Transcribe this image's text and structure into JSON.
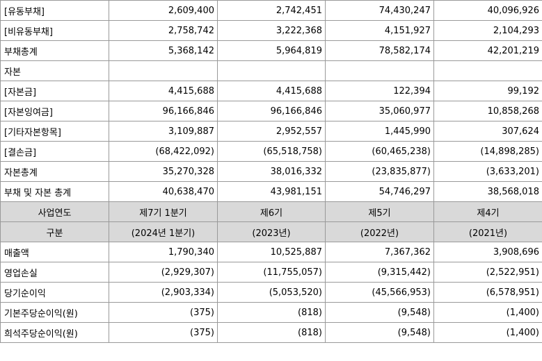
{
  "balance_rows": [
    {
      "label": "[유동부채]",
      "values": [
        "2,609,400",
        "2,742,451",
        "74,430,247",
        "40,096,926"
      ]
    },
    {
      "label": "[비유동부채]",
      "values": [
        "2,758,742",
        "3,222,368",
        "4,151,927",
        "2,104,293"
      ]
    },
    {
      "label": "부채총계",
      "values": [
        "5,368,142",
        "5,964,819",
        "78,582,174",
        "42,201,219"
      ]
    },
    {
      "label": "자본",
      "values": [
        "",
        "",
        "",
        ""
      ]
    },
    {
      "label": "[자본금]",
      "values": [
        "4,415,688",
        "4,415,688",
        "122,394",
        "99,192"
      ]
    },
    {
      "label": "[자본잉여금]",
      "values": [
        "96,166,846",
        "96,166,846",
        "35,060,977",
        "10,858,268"
      ]
    },
    {
      "label": "[기타자본항목]",
      "values": [
        "3,109,887",
        "2,952,557",
        "1,445,990",
        "307,624"
      ]
    },
    {
      "label": "[결손금]",
      "values": [
        "(68,422,092)",
        "(65,518,758)",
        "(60,465,238)",
        "(14,898,285)"
      ]
    },
    {
      "label": "자본총계",
      "values": [
        "35,270,328",
        "38,016,332",
        "(23,835,877)",
        "(3,633,201)"
      ]
    },
    {
      "label": "부채 및 자본 총계",
      "values": [
        "40,638,470",
        "43,981,151",
        "54,746,297",
        "38,568,018"
      ]
    }
  ],
  "header_rows": [
    {
      "label": "사업연도",
      "values": [
        "제7기 1분기",
        "제6기",
        "제5기",
        "제4기"
      ]
    },
    {
      "label": "구분",
      "values": [
        "(2024년 1분기)",
        "(2023년)",
        "(2022년)",
        "(2021년)"
      ]
    }
  ],
  "income_rows": [
    {
      "label": "매출액",
      "values": [
        "1,790,340",
        "10,525,887",
        "7,367,362",
        "3,908,696"
      ]
    },
    {
      "label": "영업손실",
      "values": [
        "(2,929,307)",
        "(11,755,057)",
        "(9,315,442)",
        "(2,522,951)"
      ]
    },
    {
      "label": "당기순이익",
      "values": [
        "(2,903,334)",
        "(5,053,520)",
        "(45,566,953)",
        "(6,578,951)"
      ]
    },
    {
      "label": "기본주당순이익(원)",
      "values": [
        "(375)",
        "(818)",
        "(9,548)",
        "(1,400)"
      ]
    },
    {
      "label": "희석주당순이익(원)",
      "values": [
        "(375)",
        "(818)",
        "(9,548)",
        "(1,400)"
      ]
    }
  ]
}
